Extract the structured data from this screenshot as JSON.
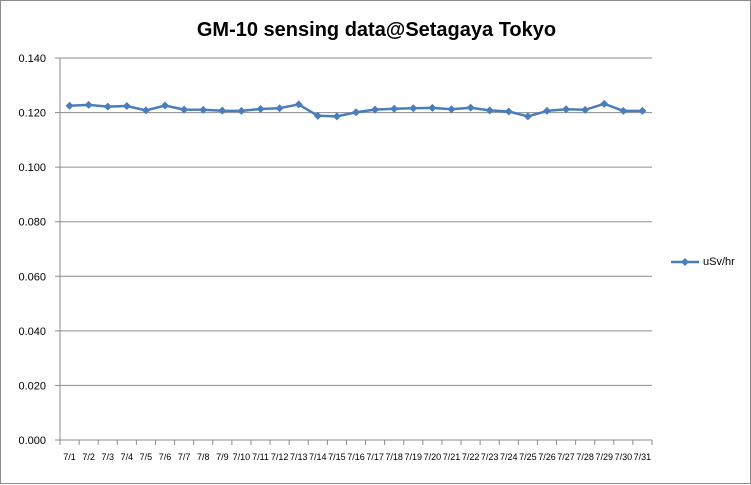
{
  "chart_data": {
    "type": "line",
    "title": "GM-10 sensing data@Setagaya Tokyo",
    "xlabel": "",
    "ylabel": "",
    "ylim": [
      0,
      0.14
    ],
    "y_ticks": [
      "0.000",
      "0.020",
      "0.040",
      "0.060",
      "0.080",
      "0.100",
      "0.120",
      "0.140"
    ],
    "categories": [
      "7/1",
      "7/2",
      "7/3",
      "7/4",
      "7/5",
      "7/6",
      "7/7",
      "7/8",
      "7/9",
      "7/10",
      "7/11",
      "7/12",
      "7/13",
      "7/14",
      "7/15",
      "7/16",
      "7/17",
      "7/18",
      "7/19",
      "7/20",
      "7/21",
      "7/22",
      "7/23",
      "7/24",
      "7/25",
      "7/26",
      "7/27",
      "7/28",
      "7/29",
      "7/30",
      "7/31"
    ],
    "series": [
      {
        "name": "uSv/hr",
        "color": "#4a7ebb",
        "values": [
          0.1225,
          0.1228,
          0.1222,
          0.1224,
          0.1208,
          0.1226,
          0.1211,
          0.121,
          0.1207,
          0.1206,
          0.1213,
          0.1216,
          0.123,
          0.1188,
          0.1186,
          0.1201,
          0.1211,
          0.1214,
          0.1216,
          0.1217,
          0.1212,
          0.1218,
          0.1208,
          0.1204,
          0.1186,
          0.1206,
          0.1212,
          0.121,
          0.1232,
          0.1206,
          0.1206
        ]
      }
    ],
    "grid": true,
    "legend_position": "right"
  }
}
